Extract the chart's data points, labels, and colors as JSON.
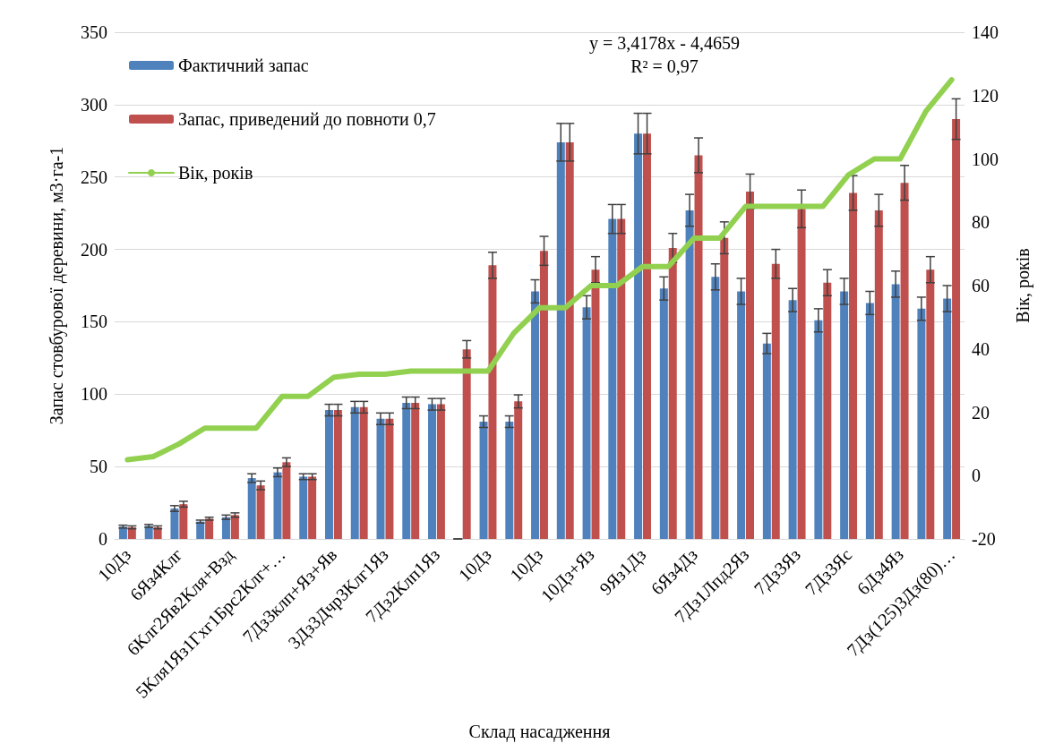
{
  "chart_data": {
    "type": "bar",
    "categories": [
      "10Дз",
      null,
      "6Яз4Клг",
      null,
      "6Клг2Яв2Кля+Взд",
      null,
      "5Кля1Яз1Гхг1Брс2Клг+…",
      null,
      "7Дз3клп+Яз+Яв",
      null,
      "3Дз3Дчр3Клг1Яз",
      null,
      "7Дз2Клп1Яз",
      null,
      "10Дз",
      null,
      "10Дз",
      null,
      "10Дз+Яз",
      null,
      "9Яз1Дз",
      null,
      "6Яз4Дз",
      null,
      "7Дз1Лпд2Яз",
      null,
      "7Дз3Яз",
      null,
      "7Дз3Яс",
      null,
      "6Дз4Яз",
      null,
      "7Дз(125)3Дз(80)…"
    ],
    "series": [
      {
        "name": "Фактичний запас",
        "color": "#4f81bd",
        "values": [
          8.5,
          9,
          21,
          12,
          15,
          42,
          46,
          43,
          89,
          91,
          83,
          94,
          93,
          0,
          81,
          81,
          171,
          274,
          160,
          221,
          280,
          173,
          227,
          181,
          171,
          135,
          165,
          151,
          171,
          163,
          176,
          159,
          166
        ],
        "errors": [
          1,
          1,
          2,
          1,
          1.5,
          3,
          3,
          2,
          4,
          4,
          4,
          4,
          4,
          0,
          4,
          4,
          8,
          13,
          8,
          10,
          14,
          8,
          11,
          9,
          9,
          7,
          8,
          8,
          9,
          8,
          9,
          8,
          9
        ]
      },
      {
        "name": "Запас, приведений до повноти 0,7",
        "color": "#c0504d",
        "values": [
          8,
          8,
          24,
          14,
          16.5,
          37,
          53,
          43,
          89,
          91,
          83,
          94,
          93,
          131,
          189,
          95,
          199,
          274,
          186,
          221,
          280,
          201,
          265,
          208,
          240,
          190,
          228,
          177,
          239,
          227,
          246,
          186,
          290
        ],
        "errors": [
          1,
          1,
          2,
          1,
          1.5,
          3,
          3,
          2,
          4,
          4,
          4,
          4,
          4,
          6,
          9,
          4.5,
          10,
          13,
          9,
          10,
          14,
          10,
          12,
          11,
          12,
          10,
          13,
          9,
          12,
          11,
          12,
          9,
          14
        ]
      },
      {
        "name": "Вік, років",
        "type": "line",
        "axis": "y2",
        "color": "#92d050",
        "values": [
          5,
          6,
          10,
          15,
          15,
          15,
          25,
          25,
          31,
          32,
          32,
          33,
          33,
          33,
          33,
          45,
          53,
          53,
          60,
          60,
          66,
          66,
          75,
          75,
          85,
          85,
          85,
          85,
          95,
          100,
          100,
          115,
          125
        ]
      }
    ],
    "xlabel": "Склад насадження",
    "ylabel": "Запас стовбурової деревини, м3·га-1",
    "y2label": "Вік, років",
    "ylim": [
      0,
      350
    ],
    "yticks": [
      0,
      50,
      100,
      150,
      200,
      250,
      300,
      350
    ],
    "y2lim": [
      -20,
      140
    ],
    "y2ticks": [
      -20,
      0,
      20,
      40,
      60,
      80,
      100,
      120,
      140
    ],
    "annotations": [
      "y = 3,4178x - 4,4659",
      "R² = 0,97"
    ],
    "grid": "y",
    "legend": "top left",
    "marker": "none",
    "line_style": "solid"
  }
}
